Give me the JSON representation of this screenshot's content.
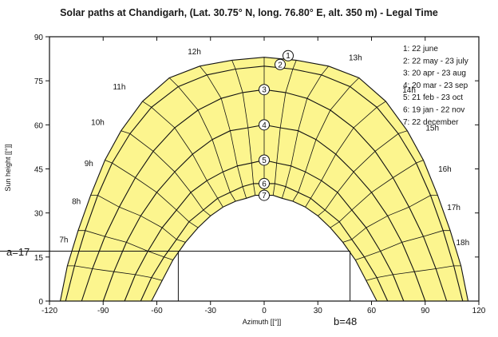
{
  "chart_data": {
    "type": "line",
    "title": "Solar paths at  Chandigarh, (Lat. 30.75° N, long. 76.80° E, alt. 350 m) - Legal Time",
    "xlabel": "Azimuth [[°]]",
    "ylabel": "Sun height [[°]]",
    "xlim": [
      -120,
      120
    ],
    "ylim": [
      0,
      90
    ],
    "xticks": [
      -120,
      -90,
      -60,
      -30,
      0,
      30,
      60,
      90,
      120
    ],
    "yticks": [
      0,
      15,
      30,
      45,
      60,
      75,
      90
    ],
    "grid": false,
    "legend_position": "top-right",
    "legend": [
      "1: 22 june",
      "2: 22 may - 23 july",
      "3: 20 apr - 23 aug",
      "4: 20 mar - 23 sep",
      "5: 21 feb - 23 oct",
      "6: 19 jan - 22 nov",
      "7: 22 december"
    ],
    "series": [
      {
        "name": "1: 22 june",
        "x": [
          -114,
          -110,
          -104,
          -97,
          -89,
          -80,
          -68,
          -53,
          -36,
          -18,
          0,
          18,
          36,
          53,
          68,
          80,
          89,
          97,
          104,
          110,
          114
        ],
        "y": [
          0,
          12,
          24,
          36,
          48,
          58,
          68,
          76,
          80,
          82,
          83,
          82,
          80,
          76,
          68,
          58,
          48,
          36,
          24,
          12,
          0
        ]
      },
      {
        "name": "2: 22 may - 23 july",
        "x": [
          -111,
          -106,
          -100,
          -93,
          -85,
          -75,
          -63,
          -48,
          -32,
          -16,
          0,
          16,
          32,
          48,
          63,
          75,
          85,
          93,
          100,
          106,
          111
        ],
        "y": [
          0,
          12,
          24,
          36,
          47,
          57,
          66,
          73,
          77,
          79,
          80,
          79,
          77,
          73,
          66,
          57,
          47,
          36,
          24,
          12,
          0
        ]
      },
      {
        "name": "3: 20 apr - 23 aug",
        "x": [
          -102,
          -96,
          -89,
          -81,
          -72,
          -62,
          -50,
          -37,
          -24,
          -12,
          0,
          12,
          24,
          37,
          50,
          62,
          72,
          81,
          89,
          96,
          102
        ],
        "y": [
          0,
          11,
          22,
          32,
          42,
          51,
          59,
          65,
          69,
          71,
          72,
          71,
          69,
          65,
          59,
          51,
          42,
          32,
          22,
          11,
          0
        ]
      },
      {
        "name": "4: 20 mar - 23 sep",
        "x": [
          -90,
          -84,
          -77,
          -69,
          -60,
          -50,
          -40,
          -29,
          -19,
          -9,
          0,
          9,
          19,
          29,
          40,
          50,
          60,
          69,
          77,
          84,
          90
        ],
        "y": [
          0,
          10,
          20,
          29,
          37,
          44,
          50,
          55,
          58,
          59,
          60,
          59,
          58,
          55,
          50,
          44,
          37,
          29,
          20,
          10,
          0
        ]
      },
      {
        "name": "5: 21 feb - 23 oct",
        "x": [
          -78,
          -72,
          -65,
          -57,
          -49,
          -41,
          -32,
          -23,
          -15,
          -7,
          0,
          7,
          15,
          23,
          32,
          41,
          49,
          57,
          65,
          72,
          78
        ],
        "y": [
          0,
          9,
          17,
          25,
          31,
          37,
          41,
          44,
          46,
          47,
          48,
          47,
          46,
          44,
          41,
          37,
          31,
          25,
          17,
          9,
          0
        ]
      },
      {
        "name": "6: 19 jan - 22 nov",
        "x": [
          -69,
          -63,
          -56,
          -49,
          -42,
          -34,
          -26,
          -19,
          -12,
          -6,
          0,
          6,
          12,
          19,
          26,
          34,
          42,
          49,
          56,
          63,
          69
        ],
        "y": [
          0,
          8,
          15,
          21,
          27,
          31,
          35,
          37,
          39,
          40,
          40,
          40,
          39,
          37,
          35,
          31,
          27,
          21,
          15,
          8,
          0
        ]
      },
      {
        "name": "7: 22 december",
        "x": [
          -63,
          -57,
          -51,
          -44,
          -37,
          -30,
          -23,
          -16,
          -10,
          -5,
          0,
          5,
          10,
          16,
          23,
          30,
          37,
          44,
          51,
          57,
          63
        ],
        "y": [
          0,
          7,
          14,
          20,
          25,
          29,
          32,
          34,
          35,
          36,
          36,
          36,
          35,
          34,
          32,
          29,
          25,
          20,
          14,
          7,
          0
        ]
      }
    ],
    "hour_labels": [
      {
        "label": "7h",
        "x": -112,
        "y": 20
      },
      {
        "label": "8h",
        "x": -105,
        "y": 33
      },
      {
        "label": "9h",
        "x": -98,
        "y": 46
      },
      {
        "label": "10h",
        "x": -93,
        "y": 60
      },
      {
        "label": "11h",
        "x": -81,
        "y": 72
      },
      {
        "label": "12h",
        "x": -39,
        "y": 84
      },
      {
        "label": "13h",
        "x": 51,
        "y": 82
      },
      {
        "label": "14h",
        "x": 81,
        "y": 71
      },
      {
        "label": "15h",
        "x": 94,
        "y": 58
      },
      {
        "label": "16h",
        "x": 101,
        "y": 44
      },
      {
        "label": "17h",
        "x": 106,
        "y": 31
      },
      {
        "label": "18h",
        "x": 111,
        "y": 19
      }
    ],
    "annotations": {
      "height_label": "a=17",
      "height_value": 17,
      "azimuth_label": "b=48",
      "azimuth_value": 48
    }
  },
  "colors": {
    "fill": "#fcf58e",
    "line": "#111111",
    "background": "#ffffff"
  }
}
